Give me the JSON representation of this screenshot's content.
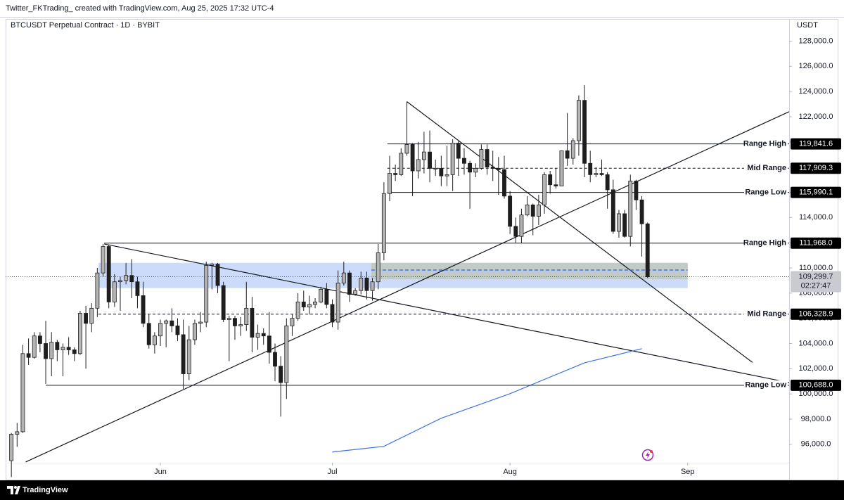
{
  "header": {
    "text": "Twitter_FKTrading_ created with TradingView.com, Aug 25, 2025 17:32 UTC-4"
  },
  "footer": {
    "brand": "TradingView"
  },
  "chart_data": {
    "type": "candlestick",
    "title": "BTCUSDT Perpetual Contract · 1D · BYBIT",
    "y_axis_label": "USDT",
    "xlim": [
      -1,
      135.7
    ],
    "xticks": [
      {
        "value": 26,
        "label": "Jun"
      },
      {
        "value": 56,
        "label": "Jul"
      },
      {
        "value": 87,
        "label": "Aug"
      },
      {
        "value": 118,
        "label": "Sep"
      }
    ],
    "ylim": [
      93200,
      129700
    ],
    "yticks": [
      {
        "value": 96000,
        "label": "96,000.0"
      },
      {
        "value": 98000,
        "label": "98,000.0"
      },
      {
        "value": 100000,
        "label": "100,000.0"
      },
      {
        "value": 102000,
        "label": "102,000.0"
      },
      {
        "value": 104000,
        "label": "104,000.0"
      },
      {
        "value": 106000,
        "label": "106,000.0"
      },
      {
        "value": 108000,
        "label": "108,000.0"
      },
      {
        "value": 110000,
        "label": "110,000.0"
      },
      {
        "value": 112000,
        "label": "112,000.0"
      },
      {
        "value": 114000,
        "label": "114,000.0"
      },
      {
        "value": 116000,
        "label": "116,000.0"
      },
      {
        "value": 118000,
        "label": "118,000.0"
      },
      {
        "value": 120000,
        "label": "120,000.0"
      },
      {
        "value": 122000,
        "label": "122,000.0"
      },
      {
        "value": 124000,
        "label": "124,000.0"
      },
      {
        "value": 126000,
        "label": "126,000.0"
      },
      {
        "value": 128000,
        "label": "128,000.0"
      }
    ],
    "up_color": "#b4b4b4",
    "down_color": "#1e1e1e",
    "wick_color": "#1e1e1e",
    "open": [
      94700,
      96800,
      97000,
      103200,
      102900,
      104600,
      104000,
      102800,
      104100,
      103500,
      103700,
      103500,
      103200,
      106400,
      105600,
      106800,
      109600,
      111700,
      107300,
      108900,
      109000,
      109400,
      108900,
      107800,
      105600,
      103900,
      104600,
      105600,
      105800,
      105400,
      104700,
      101600,
      104300,
      105600,
      105700,
      110200,
      110300,
      108600,
      105900,
      106000,
      105400,
      105500,
      106800,
      104500,
      104800,
      104600,
      103300,
      102200,
      100900,
      105400,
      106000,
      107300,
      106900,
      107100,
      107300,
      108300,
      107100,
      105700,
      108800,
      109600,
      107900,
      108200,
      109200,
      108200,
      108900,
      111200,
      115900,
      117500,
      117400,
      119100,
      119800,
      117700,
      118600,
      119200,
      117900,
      117900,
      117300,
      117400,
      119900,
      118700,
      118300,
      117600,
      117900,
      119400,
      118000,
      117900,
      117800,
      115700,
      113300,
      112500,
      114200,
      115000,
      114100,
      115000,
      117400,
      116600,
      116500,
      119300,
      118700,
      120100,
      123300,
      118300,
      117400,
      117500,
      117400,
      116200,
      112900,
      114300,
      112500,
      116900,
      115400,
      113500
    ],
    "high": [
      96900,
      97700,
      103900,
      104400,
      104900,
      104900,
      105800,
      104900,
      104300,
      104000,
      104500,
      103700,
      106600,
      107000,
      107200,
      110000,
      111900,
      111800,
      109500,
      109300,
      110400,
      110700,
      109300,
      108900,
      106300,
      104900,
      105900,
      105900,
      106800,
      106000,
      105900,
      105400,
      105900,
      106500,
      110500,
      110400,
      110400,
      108900,
      106200,
      106200,
      106100,
      108900,
      107700,
      105500,
      105200,
      106500,
      104000,
      103000,
      106000,
      106300,
      108000,
      108200,
      107800,
      107600,
      108500,
      108800,
      107500,
      109800,
      110500,
      109800,
      108400,
      109700,
      109700,
      109200,
      111900,
      116800,
      118900,
      118200,
      119500,
      123200,
      119900,
      120000,
      120800,
      120900,
      118600,
      118900,
      119700,
      120200,
      120100,
      119500,
      118500,
      118300,
      119800,
      119800,
      119300,
      118800,
      118900,
      116100,
      114000,
      114700,
      115700,
      115100,
      115800,
      117600,
      117700,
      117900,
      119300,
      122300,
      120300,
      123700,
      124500,
      119300,
      118000,
      118600,
      117600,
      117000,
      114600,
      114600,
      117400,
      117000,
      115700,
      113600
    ],
    "low": [
      93400,
      95800,
      96900,
      102300,
      102800,
      103300,
      100800,
      101400,
      102600,
      101400,
      103100,
      102600,
      103100,
      102000,
      104900,
      106100,
      109300,
      106800,
      106900,
      106600,
      108700,
      107600,
      106800,
      105300,
      103600,
      103200,
      103800,
      103700,
      104900,
      104200,
      100400,
      101100,
      103900,
      104900,
      105300,
      108300,
      108000,
      105700,
      102600,
      104300,
      104600,
      105000,
      103300,
      103500,
      103900,
      102400,
      101000,
      98200,
      99600,
      104600,
      105800,
      106600,
      106300,
      106800,
      107200,
      106800,
      105300,
      105100,
      108600,
      107300,
      107800,
      107900,
      107500,
      107400,
      108300,
      110600,
      115300,
      116900,
      117300,
      118900,
      115700,
      117100,
      117500,
      116800,
      117300,
      116500,
      116500,
      116100,
      117300,
      117400,
      114700,
      117200,
      117800,
      117400,
      116900,
      115800,
      115500,
      112700,
      112000,
      112000,
      114100,
      112600,
      113400,
      114300,
      115900,
      116300,
      116500,
      118100,
      118200,
      118900,
      117200,
      116800,
      117200,
      117300,
      114700,
      112700,
      112400,
      112400,
      111700,
      114600,
      110900,
      109200
    ],
    "close": [
      96800,
      97000,
      103200,
      102900,
      104600,
      104000,
      102800,
      104100,
      103500,
      103700,
      103500,
      103200,
      106400,
      105600,
      106800,
      109600,
      111700,
      107300,
      108900,
      109000,
      109400,
      108900,
      107800,
      105600,
      103900,
      104600,
      105600,
      105800,
      105400,
      104700,
      101600,
      104300,
      105600,
      105700,
      110200,
      110300,
      108600,
      105900,
      106000,
      105400,
      105500,
      106800,
      104500,
      104800,
      104600,
      103300,
      102200,
      100900,
      105400,
      106000,
      107300,
      106900,
      107100,
      107300,
      108300,
      107100,
      105700,
      108800,
      109600,
      107900,
      108200,
      109200,
      108200,
      108900,
      111200,
      115900,
      117500,
      117400,
      119100,
      119800,
      117700,
      118600,
      119200,
      117900,
      117900,
      117300,
      117400,
      119900,
      118700,
      118300,
      117600,
      117900,
      119400,
      118000,
      117900,
      117800,
      115700,
      113300,
      112500,
      114200,
      115000,
      114100,
      115000,
      117400,
      116600,
      116500,
      119300,
      118700,
      120100,
      123300,
      118300,
      117400,
      117500,
      117400,
      116200,
      112900,
      114300,
      112500,
      116900,
      115400,
      113500,
      109299.7
    ],
    "zones": [
      {
        "x": [
          15.2,
          118
        ],
        "y": [
          108400,
          110400
        ],
        "color": "rgba(120,160,240,0.38)"
      },
      {
        "x": [
          62.8,
          118
        ],
        "y": [
          109100,
          110400
        ],
        "color": "rgba(190,196,180,0.75)"
      }
    ],
    "levels": [
      {
        "label": "Range High",
        "value": 119841.6,
        "value_label": "119,841.6",
        "start": 65.6,
        "dashed": false
      },
      {
        "label": "Mid Range",
        "value": 117909.3,
        "value_label": "117,909.3",
        "start": 65.6,
        "dashed": true
      },
      {
        "label": "Range Low",
        "value": 115990.1,
        "value_label": "115,990.1",
        "start": 65.6,
        "dashed": false
      },
      {
        "label": "Range High",
        "value": 111968.0,
        "value_label": "111,968.0",
        "start": 16.2,
        "dashed": false
      },
      {
        "label": "Mid Range",
        "value": 106328.9,
        "value_label": "106,328.9",
        "start": 15.2,
        "dashed": true
      },
      {
        "label": "Range Low",
        "value": 100688.0,
        "value_label": "100,688.0",
        "start": 6,
        "dashed": false
      }
    ],
    "lines": [
      {
        "x": [
          2.5,
          135.7
        ],
        "y": [
          94600,
          122400
        ],
        "color": "#131722",
        "dashed": false
      },
      {
        "x": [
          16.2,
          135.7
        ],
        "y": [
          111900,
          100900
        ],
        "color": "#131722",
        "dashed": false
      },
      {
        "x": [
          69,
          129.3
        ],
        "y": [
          123200,
          102500
        ],
        "color": "#131722",
        "dashed": false
      },
      {
        "x": [
          62.8,
          118
        ],
        "y": [
          109830,
          109830
        ],
        "color": "#2962ff",
        "dashed": true
      },
      {
        "x": [
          56,
          65,
          75,
          87,
          100,
          110
        ],
        "y": [
          95390,
          95840,
          98070,
          100020,
          102470,
          103590
        ],
        "color": "#3b73e0",
        "dashed": false
      }
    ],
    "last_price": {
      "value": 109299.7,
      "label": "109,299.7",
      "countdown": "02:27:47"
    }
  }
}
